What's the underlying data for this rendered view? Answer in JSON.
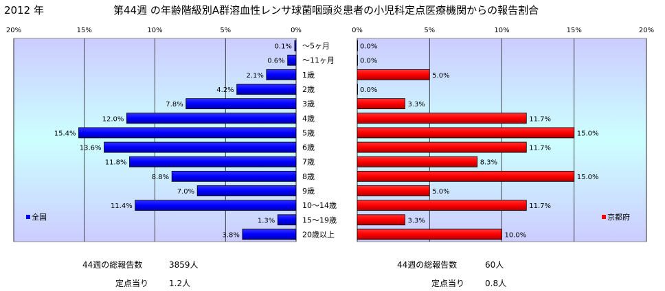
{
  "title": {
    "year": "2012 年",
    "text": "第44週 の年齢階級別A群溶血性レンサ球菌咽頭炎患者の小児科定点医療機関からの報告割合"
  },
  "chart_data": [
    {
      "type": "bar",
      "orientation": "horizontal",
      "direction": "right-to-left",
      "legend": "全国",
      "legend_position": "bottom-left",
      "color": "#0000FF",
      "xlim": [
        0,
        20
      ],
      "x_ticks": [
        "20%",
        "15%",
        "10%",
        "5%",
        "0%"
      ],
      "grid": true,
      "categories": [
        "～5ヶ月",
        "～11ヶ月",
        "1歳",
        "2歳",
        "3歳",
        "4歳",
        "5歳",
        "6歳",
        "7歳",
        "8歳",
        "9歳",
        "10～14歳",
        "15～19歳",
        "20歳以上"
      ],
      "values": [
        0.1,
        0.6,
        2.1,
        4.2,
        7.8,
        12.0,
        15.4,
        13.6,
        11.8,
        8.8,
        7.0,
        11.4,
        1.3,
        3.8
      ],
      "value_labels": [
        "0.1%",
        "0.6%",
        "2.1%",
        "4.2%",
        "7.8%",
        "12.0%",
        "15.4%",
        "13.6%",
        "11.8%",
        "8.8%",
        "7.0%",
        "11.4%",
        "1.3%",
        "3.8%"
      ]
    },
    {
      "type": "bar",
      "orientation": "horizontal",
      "direction": "left-to-right",
      "legend": "京都府",
      "legend_position": "bottom-right",
      "color": "#FF0000",
      "xlim": [
        0,
        20
      ],
      "x_ticks": [
        "0%",
        "5%",
        "10%",
        "15%",
        "20%"
      ],
      "grid": true,
      "categories": [
        "～5ヶ月",
        "～11ヶ月",
        "1歳",
        "2歳",
        "3歳",
        "4歳",
        "5歳",
        "6歳",
        "7歳",
        "8歳",
        "9歳",
        "10～14歳",
        "15～19歳",
        "20歳以上"
      ],
      "values": [
        0.0,
        0.0,
        5.0,
        0.0,
        3.3,
        11.7,
        15.0,
        11.7,
        8.3,
        15.0,
        5.0,
        11.7,
        3.3,
        10.0
      ],
      "value_labels": [
        "0.0%",
        "0.0%",
        "5.0%",
        "0.0%",
        "3.3%",
        "11.7%",
        "15.0%",
        "11.7%",
        "8.3%",
        "15.0%",
        "5.0%",
        "11.7%",
        "3.3%",
        "10.0%"
      ]
    }
  ],
  "footer": {
    "national": {
      "total_label": "44週の総報告数",
      "total_value": "3859人",
      "per_label": "定点当り",
      "per_value": "1.2人"
    },
    "kyoto": {
      "total_label": "44週の総報告数",
      "total_value": "60人",
      "per_label": "定点当り",
      "per_value": "0.8人"
    }
  },
  "colors": {
    "plot_bg_top": "#CCCCFF",
    "plot_bg_mid": "#CCFFFF",
    "bar_blue": "#0000FF",
    "bar_red": "#FF0000",
    "grid": "#000000"
  }
}
